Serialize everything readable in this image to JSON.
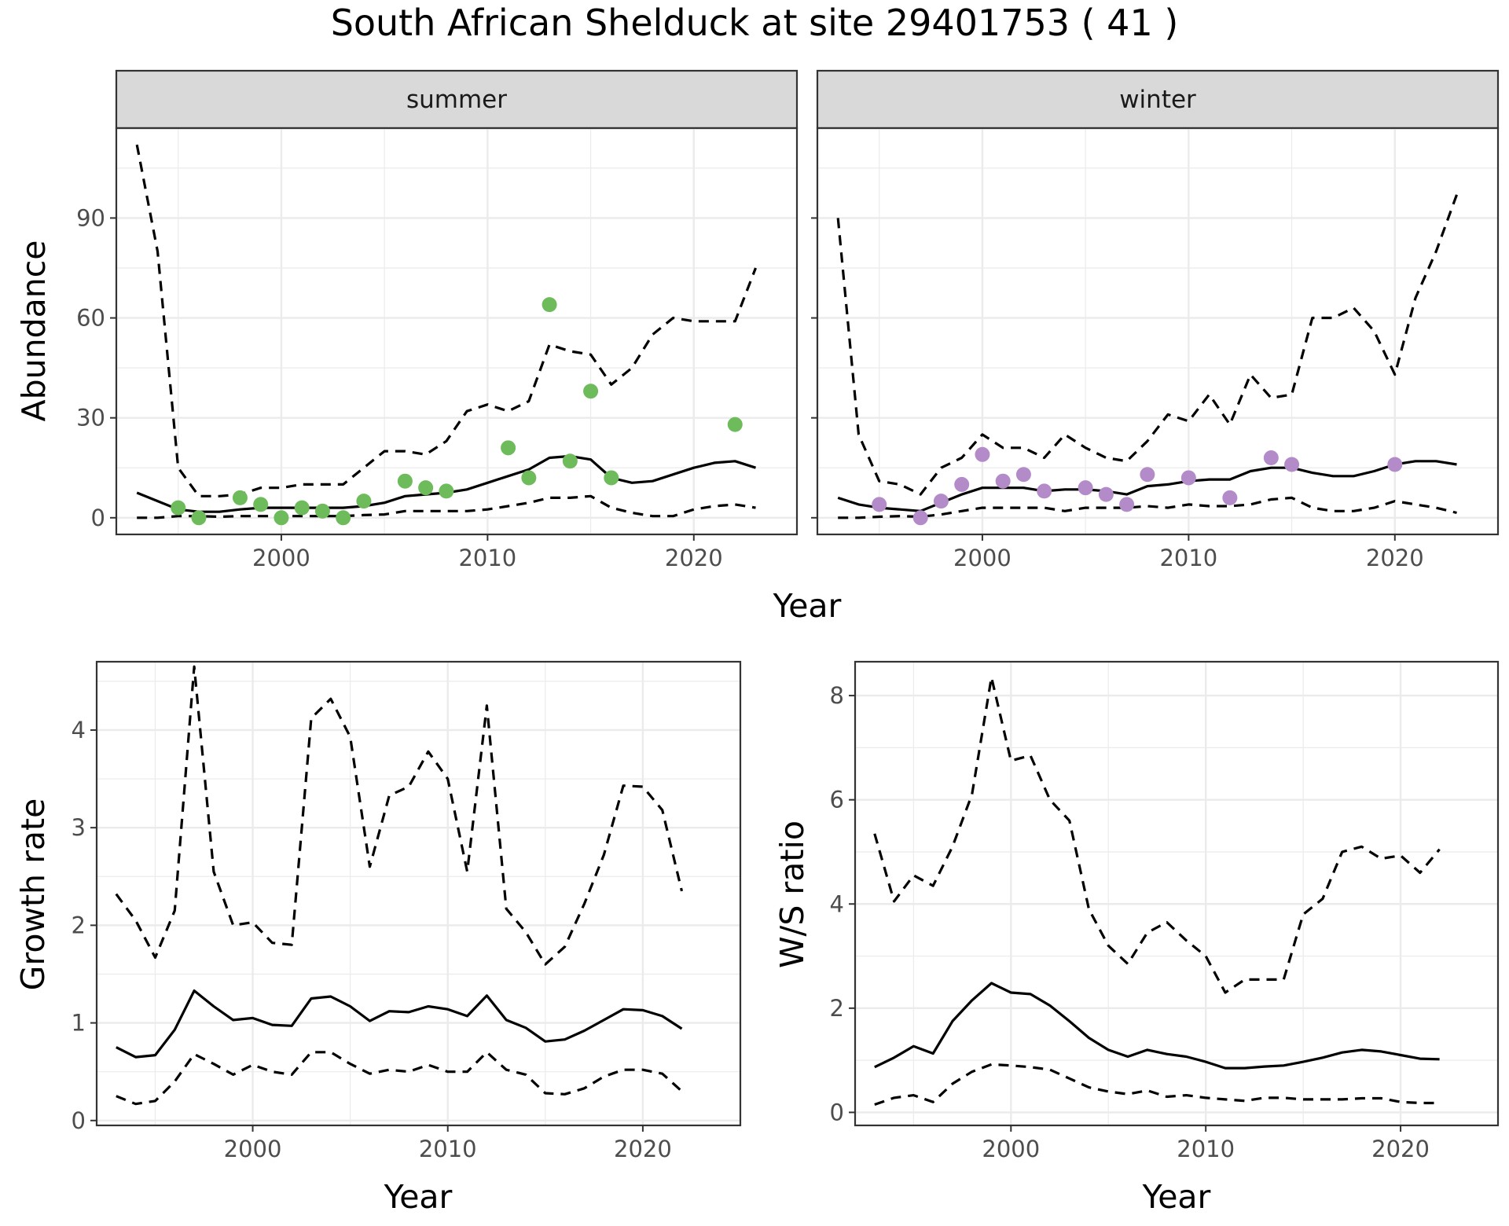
{
  "title": "South African Shelduck at site 29401753 ( 41 )",
  "colors": {
    "summer_points": "#6DBB5A",
    "winter_points": "#B48BC9",
    "strip_fill": "#D9D9D9",
    "grid": "#EBEBEB",
    "line": "#000000"
  },
  "chart_data": [
    {
      "type": "line",
      "title": "South African Shelduck at site 29401753 ( 41 )",
      "facets": [
        "summer",
        "winter"
      ],
      "xlabel": "Year",
      "ylabel": "Abundance",
      "xlim": [
        1992,
        2025
      ],
      "ylim": [
        -5,
        117
      ],
      "xticks": [
        2000,
        2010,
        2020
      ],
      "yticks": [
        0,
        30,
        60,
        90
      ],
      "grid": true,
      "panels": [
        {
          "facet": "summer",
          "x": [
            1993,
            1994,
            1995,
            1996,
            1997,
            1998,
            1999,
            2000,
            2001,
            2002,
            2003,
            2004,
            2005,
            2006,
            2007,
            2008,
            2009,
            2010,
            2011,
            2012,
            2013,
            2014,
            2015,
            2016,
            2017,
            2018,
            2019,
            2020,
            2021,
            2022,
            2023
          ],
          "series": [
            {
              "name": "",
              "style": "solid",
              "values": [
                7.5,
                5,
                2.5,
                1.8,
                1.8,
                2.5,
                3,
                3,
                3,
                3,
                3,
                3.5,
                4.5,
                6.5,
                7,
                7.5,
                8.5,
                10.5,
                12.5,
                14.5,
                18,
                18.5,
                17.5,
                12,
                10.5,
                11,
                13,
                15,
                16.5,
                17,
                15
              ]
            },
            {
              "name": "",
              "style": "dashed",
              "values": [
                112,
                80,
                15,
                6.5,
                6.5,
                7,
                9,
                9,
                10,
                10,
                10,
                15,
                20,
                20,
                19,
                23,
                32,
                34,
                32,
                35,
                52,
                50,
                49,
                40,
                45,
                55,
                60,
                59,
                59,
                59,
                75
              ]
            },
            {
              "name": "",
              "style": "dashed",
              "values": [
                0,
                0,
                0.5,
                0.5,
                0.3,
                0.5,
                0.5,
                0.5,
                0.5,
                0.5,
                0.5,
                0.8,
                1,
                2,
                2,
                2,
                2,
                2.5,
                3.5,
                4.5,
                6,
                6,
                6.5,
                3,
                1.5,
                0.5,
                0.5,
                2.5,
                3.5,
                4,
                3
              ]
            }
          ],
          "points": {
            "x": [
              1995,
              1996,
              1998,
              1999,
              2000,
              2001,
              2002,
              2003,
              2004,
              2006,
              2007,
              2008,
              2011,
              2012,
              2013,
              2014,
              2015,
              2016,
              2022
            ],
            "y": [
              3,
              0,
              6,
              4,
              0,
              3,
              2,
              0,
              5,
              11,
              9,
              8,
              21,
              12,
              64,
              17,
              38,
              12,
              28
            ]
          }
        },
        {
          "facet": "winter",
          "x": [
            1993,
            1994,
            1995,
            1996,
            1997,
            1998,
            1999,
            2000,
            2001,
            2002,
            2003,
            2004,
            2005,
            2006,
            2007,
            2008,
            2009,
            2010,
            2011,
            2012,
            2013,
            2014,
            2015,
            2016,
            2017,
            2018,
            2019,
            2020,
            2021,
            2022,
            2023
          ],
          "series": [
            {
              "name": "",
              "style": "solid",
              "values": [
                6,
                4,
                3,
                2.5,
                2,
                4.5,
                7,
                9,
                9,
                9,
                8,
                8.5,
                8.5,
                8,
                7,
                9.5,
                10,
                11,
                11.5,
                11.5,
                14,
                15,
                15,
                13.5,
                12.5,
                12.5,
                14,
                16,
                17,
                17,
                16
              ]
            },
            {
              "name": "",
              "style": "dashed",
              "values": [
                90,
                25,
                11,
                10,
                7,
                15,
                18,
                25,
                21,
                21,
                18,
                25,
                21,
                18,
                17,
                23,
                31,
                29,
                37,
                28,
                43,
                36,
                37,
                60,
                60,
                63,
                56,
                43,
                66,
                80,
                97
              ]
            },
            {
              "name": "",
              "style": "dashed",
              "values": [
                0,
                0,
                0.3,
                0.5,
                0.3,
                1,
                2,
                3,
                3,
                3,
                3,
                2,
                3,
                3,
                3,
                3.5,
                3,
                4,
                3.5,
                3.5,
                4,
                5.5,
                6,
                3,
                2,
                2,
                3,
                5,
                4,
                3,
                1.5
              ]
            }
          ],
          "points": {
            "x": [
              1995,
              1997,
              1998,
              1999,
              2000,
              2001,
              2002,
              2003,
              2005,
              2006,
              2007,
              2008,
              2010,
              2012,
              2014,
              2015,
              2020
            ],
            "y": [
              4,
              0,
              5,
              10,
              19,
              11,
              13,
              8,
              9,
              7,
              4,
              13,
              12,
              6,
              18,
              16,
              16
            ]
          }
        }
      ]
    },
    {
      "type": "line",
      "xlabel": "Year",
      "ylabel": "Growth rate",
      "xlim": [
        1992,
        2025
      ],
      "ylim": [
        -0.05,
        4.7
      ],
      "xticks": [
        2000,
        2010,
        2020
      ],
      "yticks": [
        0,
        1,
        2,
        3,
        4
      ],
      "grid": true,
      "x": [
        1993,
        1994,
        1995,
        1996,
        1997,
        1998,
        1999,
        2000,
        2001,
        2002,
        2003,
        2004,
        2005,
        2006,
        2007,
        2008,
        2009,
        2010,
        2011,
        2012,
        2013,
        2014,
        2015,
        2016,
        2017,
        2018,
        2019,
        2020,
        2021,
        2022
      ],
      "series": [
        {
          "name": "",
          "style": "solid",
          "values": [
            0.75,
            0.65,
            0.67,
            0.93,
            1.33,
            1.17,
            1.03,
            1.05,
            0.98,
            0.97,
            1.25,
            1.27,
            1.17,
            1.02,
            1.12,
            1.11,
            1.17,
            1.14,
            1.07,
            1.28,
            1.03,
            0.95,
            0.81,
            0.83,
            0.92,
            1.03,
            1.14,
            1.13,
            1.07,
            0.94
          ]
        },
        {
          "name": "",
          "style": "dashed",
          "values": [
            2.32,
            2.05,
            1.67,
            2.15,
            4.65,
            2.55,
            2.0,
            2.03,
            1.82,
            1.8,
            4.12,
            4.32,
            3.93,
            2.6,
            3.33,
            3.42,
            3.78,
            3.5,
            2.55,
            4.25,
            2.17,
            1.93,
            1.6,
            1.78,
            2.22,
            2.72,
            3.43,
            3.42,
            3.18,
            2.35
          ]
        },
        {
          "name": "",
          "style": "dashed",
          "values": [
            0.25,
            0.17,
            0.2,
            0.4,
            0.68,
            0.58,
            0.47,
            0.57,
            0.5,
            0.47,
            0.7,
            0.7,
            0.58,
            0.48,
            0.52,
            0.5,
            0.57,
            0.5,
            0.5,
            0.7,
            0.52,
            0.47,
            0.28,
            0.27,
            0.33,
            0.45,
            0.52,
            0.52,
            0.48,
            0.3
          ]
        }
      ]
    },
    {
      "type": "line",
      "xlabel": "Year",
      "ylabel": "W/S ratio",
      "xlim": [
        1992,
        2025
      ],
      "ylim": [
        -0.25,
        8.65
      ],
      "xticks": [
        2000,
        2010,
        2020
      ],
      "yticks": [
        0,
        2,
        4,
        6,
        8
      ],
      "grid": true,
      "x": [
        1993,
        1994,
        1995,
        1996,
        1997,
        1998,
        1999,
        2000,
        2001,
        2002,
        2003,
        2004,
        2005,
        2006,
        2007,
        2008,
        2009,
        2010,
        2011,
        2012,
        2013,
        2014,
        2015,
        2016,
        2017,
        2018,
        2019,
        2020,
        2021,
        2022
      ],
      "series": [
        {
          "name": "",
          "style": "solid",
          "values": [
            0.87,
            1.05,
            1.27,
            1.13,
            1.75,
            2.15,
            2.48,
            2.3,
            2.27,
            2.05,
            1.75,
            1.43,
            1.2,
            1.07,
            1.2,
            1.12,
            1.07,
            0.97,
            0.85,
            0.85,
            0.88,
            0.9,
            0.97,
            1.05,
            1.15,
            1.2,
            1.17,
            1.1,
            1.03,
            1.02
          ]
        },
        {
          "name": "",
          "style": "dashed",
          "values": [
            5.35,
            4.05,
            4.55,
            4.35,
            5.1,
            6.1,
            8.35,
            6.75,
            6.85,
            6.0,
            5.6,
            3.9,
            3.2,
            2.85,
            3.45,
            3.65,
            3.3,
            3.0,
            2.3,
            2.55,
            2.55,
            2.55,
            3.8,
            4.1,
            5.0,
            5.1,
            4.87,
            4.93,
            4.6,
            5.05
          ]
        },
        {
          "name": "",
          "style": "dashed",
          "values": [
            0.15,
            0.28,
            0.33,
            0.2,
            0.55,
            0.78,
            0.92,
            0.9,
            0.87,
            0.82,
            0.65,
            0.48,
            0.4,
            0.35,
            0.42,
            0.3,
            0.33,
            0.28,
            0.25,
            0.22,
            0.28,
            0.28,
            0.25,
            0.25,
            0.25,
            0.27,
            0.27,
            0.2,
            0.18,
            0.18
          ]
        }
      ]
    }
  ]
}
